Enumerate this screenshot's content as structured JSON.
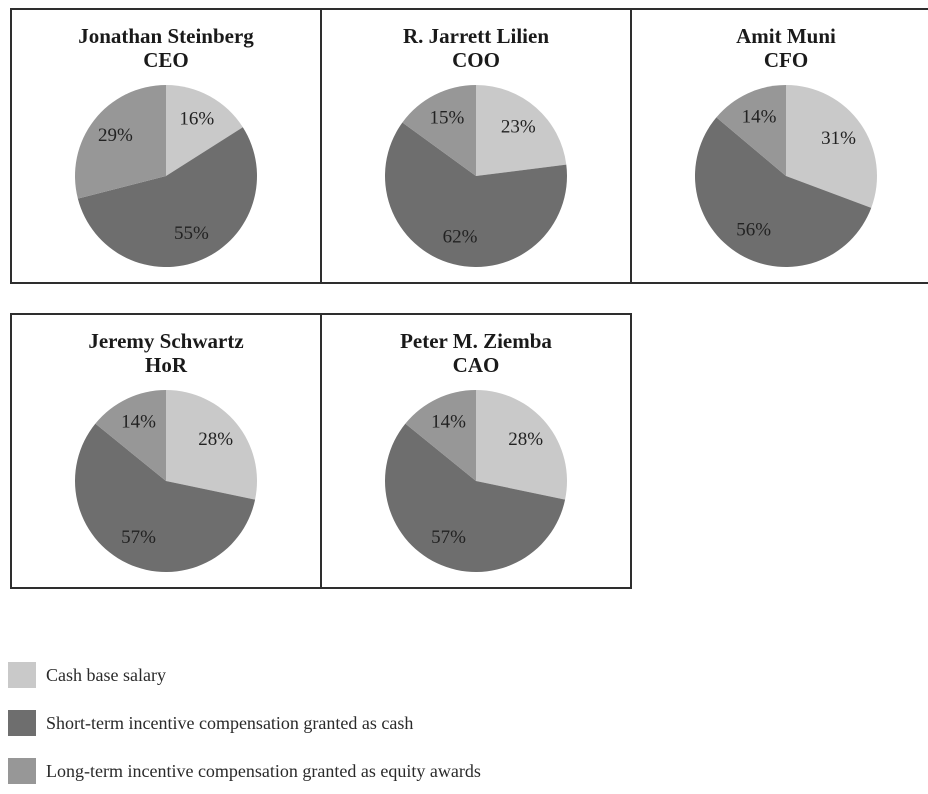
{
  "chart_data": {
    "type": "pie",
    "colors": {
      "cash_base_salary": "#c9c9c9",
      "short_term_cash": "#6e6e6e",
      "long_term_equity": "#979797"
    },
    "legend": [
      {
        "key": "cash_base_salary",
        "label": "Cash base salary"
      },
      {
        "key": "short_term_cash",
        "label": "Short-term incentive compensation granted as cash"
      },
      {
        "key": "long_term_equity",
        "label": "Long-term incentive compensation granted as equity awards"
      }
    ],
    "charts": [
      {
        "name": "Jonathan Steinberg",
        "role": "CEO",
        "slices": [
          {
            "key": "cash_base_salary",
            "value": 16,
            "label": "16%"
          },
          {
            "key": "short_term_cash",
            "value": 55,
            "label": "55%"
          },
          {
            "key": "long_term_equity",
            "value": 29,
            "label": "29%"
          }
        ]
      },
      {
        "name": "R. Jarrett Lilien",
        "role": "COO",
        "slices": [
          {
            "key": "cash_base_salary",
            "value": 23,
            "label": "23%"
          },
          {
            "key": "short_term_cash",
            "value": 62,
            "label": "62%"
          },
          {
            "key": "long_term_equity",
            "value": 15,
            "label": "15%"
          }
        ]
      },
      {
        "name": "Amit Muni",
        "role": "CFO",
        "slices": [
          {
            "key": "cash_base_salary",
            "value": 31,
            "label": "31%"
          },
          {
            "key": "short_term_cash",
            "value": 56,
            "label": "56%"
          },
          {
            "key": "long_term_equity",
            "value": 14,
            "label": "14%"
          }
        ]
      },
      {
        "name": "Jeremy Schwartz",
        "role": "HoR",
        "slices": [
          {
            "key": "cash_base_salary",
            "value": 28,
            "label": "28%"
          },
          {
            "key": "short_term_cash",
            "value": 57,
            "label": "57%"
          },
          {
            "key": "long_term_equity",
            "value": 14,
            "label": "14%"
          }
        ]
      },
      {
        "name": "Peter M. Ziemba",
        "role": "CAO",
        "slices": [
          {
            "key": "cash_base_salary",
            "value": 28,
            "label": "28%"
          },
          {
            "key": "short_term_cash",
            "value": 57,
            "label": "57%"
          },
          {
            "key": "long_term_equity",
            "value": 14,
            "label": "14%"
          }
        ]
      }
    ]
  }
}
